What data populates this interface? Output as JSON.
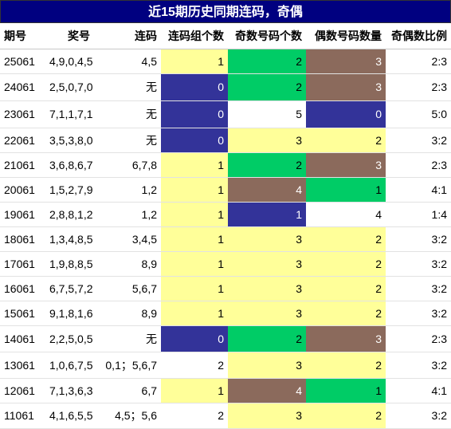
{
  "title": "近15期历史同期连码，奇偶",
  "headers": [
    "期号",
    "奖号",
    "连码",
    "连码组个数",
    "奇数号码个数",
    "偶数号码数量",
    "奇偶数比例"
  ],
  "colors": {
    "yellow": "#ffff99",
    "navy": "#333399",
    "green": "#00cc66",
    "brown": "#8b6a5c",
    "white": "#ffffff"
  },
  "rows": [
    {
      "period": "25061",
      "numbers": "4,9,0,4,5",
      "lian": "4,5",
      "groups": "1",
      "odd": "2",
      "even": "3",
      "ratio": "2:3",
      "g_bg": "yellow",
      "o_bg": "green",
      "e_bg": "brown"
    },
    {
      "period": "24061",
      "numbers": "2,5,0,7,0",
      "lian": "无",
      "groups": "0",
      "odd": "2",
      "even": "3",
      "ratio": "2:3",
      "g_bg": "navy",
      "o_bg": "green",
      "e_bg": "brown"
    },
    {
      "period": "23061",
      "numbers": "7,1,1,7,1",
      "lian": "无",
      "groups": "0",
      "odd": "5",
      "even": "0",
      "ratio": "5:0",
      "g_bg": "navy",
      "o_bg": "white",
      "e_bg": "navy"
    },
    {
      "period": "22061",
      "numbers": "3,5,3,8,0",
      "lian": "无",
      "groups": "0",
      "odd": "3",
      "even": "2",
      "ratio": "3:2",
      "g_bg": "navy",
      "o_bg": "yellow",
      "e_bg": "yellow"
    },
    {
      "period": "21061",
      "numbers": "3,6,8,6,7",
      "lian": "6,7,8",
      "groups": "1",
      "odd": "2",
      "even": "3",
      "ratio": "2:3",
      "g_bg": "yellow",
      "o_bg": "green",
      "e_bg": "brown"
    },
    {
      "period": "20061",
      "numbers": "1,5,2,7,9",
      "lian": "1,2",
      "groups": "1",
      "odd": "4",
      "even": "1",
      "ratio": "4:1",
      "g_bg": "yellow",
      "o_bg": "brown",
      "e_bg": "green"
    },
    {
      "period": "19061",
      "numbers": "2,8,8,1,2",
      "lian": "1,2",
      "groups": "1",
      "odd": "1",
      "even": "4",
      "ratio": "1:4",
      "g_bg": "yellow",
      "o_bg": "navy",
      "e_bg": "white"
    },
    {
      "period": "18061",
      "numbers": "1,3,4,8,5",
      "lian": "3,4,5",
      "groups": "1",
      "odd": "3",
      "even": "2",
      "ratio": "3:2",
      "g_bg": "yellow",
      "o_bg": "yellow",
      "e_bg": "yellow"
    },
    {
      "period": "17061",
      "numbers": "1,9,8,8,5",
      "lian": "8,9",
      "groups": "1",
      "odd": "3",
      "even": "2",
      "ratio": "3:2",
      "g_bg": "yellow",
      "o_bg": "yellow",
      "e_bg": "yellow"
    },
    {
      "period": "16061",
      "numbers": "6,7,5,7,2",
      "lian": "5,6,7",
      "groups": "1",
      "odd": "3",
      "even": "2",
      "ratio": "3:2",
      "g_bg": "yellow",
      "o_bg": "yellow",
      "e_bg": "yellow"
    },
    {
      "period": "15061",
      "numbers": "9,1,8,1,6",
      "lian": "8,9",
      "groups": "1",
      "odd": "3",
      "even": "2",
      "ratio": "3:2",
      "g_bg": "yellow",
      "o_bg": "yellow",
      "e_bg": "yellow"
    },
    {
      "period": "14061",
      "numbers": "2,2,5,0,5",
      "lian": "无",
      "groups": "0",
      "odd": "2",
      "even": "3",
      "ratio": "2:3",
      "g_bg": "navy",
      "o_bg": "green",
      "e_bg": "brown"
    },
    {
      "period": "13061",
      "numbers": "1,0,6,7,5",
      "lian": "0,1；5,6,7",
      "groups": "2",
      "odd": "3",
      "even": "2",
      "ratio": "3:2",
      "g_bg": "white",
      "o_bg": "yellow",
      "e_bg": "yellow"
    },
    {
      "period": "12061",
      "numbers": "7,1,3,6,3",
      "lian": "6,7",
      "groups": "1",
      "odd": "4",
      "even": "1",
      "ratio": "4:1",
      "g_bg": "yellow",
      "o_bg": "brown",
      "e_bg": "green"
    },
    {
      "period": "11061",
      "numbers": "4,1,6,5,5",
      "lian": "4,5；5,6",
      "groups": "2",
      "odd": "3",
      "even": "2",
      "ratio": "3:2",
      "g_bg": "white",
      "o_bg": "yellow",
      "e_bg": "yellow"
    }
  ]
}
